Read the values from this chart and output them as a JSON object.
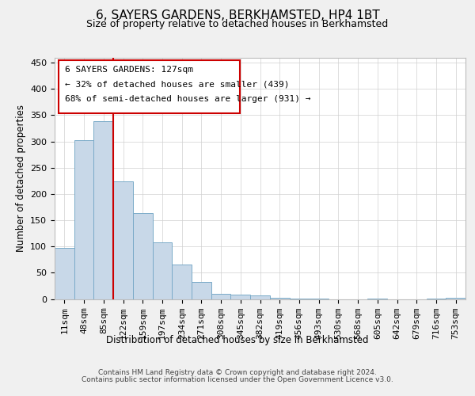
{
  "title": "6, SAYERS GARDENS, BERKHAMSTED, HP4 1BT",
  "subtitle": "Size of property relative to detached houses in Berkhamsted",
  "xlabel": "Distribution of detached houses by size in Berkhamsted",
  "ylabel": "Number of detached properties",
  "categories": [
    "11sqm",
    "48sqm",
    "85sqm",
    "122sqm",
    "159sqm",
    "197sqm",
    "234sqm",
    "271sqm",
    "308sqm",
    "345sqm",
    "382sqm",
    "419sqm",
    "456sqm",
    "493sqm",
    "530sqm",
    "568sqm",
    "605sqm",
    "642sqm",
    "679sqm",
    "716sqm",
    "753sqm"
  ],
  "values": [
    97,
    303,
    338,
    224,
    164,
    108,
    65,
    32,
    10,
    9,
    7,
    3,
    1,
    1,
    0,
    0,
    1,
    0,
    0,
    1,
    2
  ],
  "bar_color": "#c8d8e8",
  "bar_edge_color": "#7aaac8",
  "grid_color": "#d0d0d0",
  "annotation_box_color": "#cc0000",
  "annotation_line_color": "#cc0000",
  "property_label": "6 SAYERS GARDENS: 127sqm",
  "pct_smaller": 32,
  "count_smaller": 439,
  "pct_larger_semi": 68,
  "count_larger_semi": 931,
  "red_line_x": 2.5,
  "ylim": [
    0,
    460
  ],
  "yticks": [
    0,
    50,
    100,
    150,
    200,
    250,
    300,
    350,
    400,
    450
  ],
  "footer_line1": "Contains HM Land Registry data © Crown copyright and database right 2024.",
  "footer_line2": "Contains public sector information licensed under the Open Government Licence v3.0.",
  "background_color": "#f0f0f0",
  "plot_bg_color": "#ffffff",
  "title_fontsize": 11,
  "subtitle_fontsize": 9,
  "axis_label_fontsize": 8.5,
  "tick_fontsize": 8,
  "annotation_fontsize": 8,
  "footer_fontsize": 6.5
}
